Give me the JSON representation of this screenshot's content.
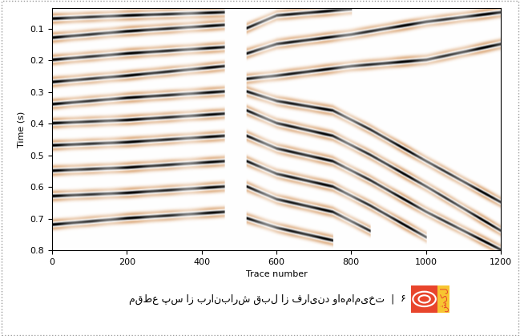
{
  "chart_data": {
    "type": "seismic_section",
    "xlabel": "Trace number",
    "ylabel": "Time (s)",
    "xlim": [
      0,
      1200
    ],
    "ylim": [
      0.8,
      0.035
    ],
    "xticks": [
      0,
      200,
      400,
      600,
      800,
      1000,
      1200
    ],
    "yticks": [
      0.1,
      0.2,
      0.3,
      0.4,
      0.5,
      0.6,
      0.7,
      0.8
    ],
    "horizons": [
      {
        "trace": [
          0,
          200,
          460
        ],
        "time": [
          0.07,
          0.06,
          0.05
        ]
      },
      {
        "trace": [
          0,
          200,
          460
        ],
        "time": [
          0.13,
          0.11,
          0.09
        ]
      },
      {
        "trace": [
          0,
          200,
          460
        ],
        "time": [
          0.2,
          0.18,
          0.16
        ]
      },
      {
        "trace": [
          0,
          200,
          460
        ],
        "time": [
          0.27,
          0.25,
          0.22
        ]
      },
      {
        "trace": [
          0,
          200,
          460
        ],
        "time": [
          0.34,
          0.32,
          0.3
        ]
      },
      {
        "trace": [
          0,
          200,
          460
        ],
        "time": [
          0.4,
          0.39,
          0.37
        ]
      },
      {
        "trace": [
          0,
          200,
          460
        ],
        "time": [
          0.47,
          0.46,
          0.44
        ]
      },
      {
        "trace": [
          0,
          200,
          460
        ],
        "time": [
          0.55,
          0.54,
          0.52
        ]
      },
      {
        "trace": [
          0,
          200,
          460
        ],
        "time": [
          0.63,
          0.62,
          0.6
        ]
      },
      {
        "trace": [
          0,
          200,
          460
        ],
        "time": [
          0.72,
          0.7,
          0.68
        ]
      },
      {
        "trace": [
          520,
          600,
          800
        ],
        "time": [
          0.1,
          0.06,
          0.04
        ]
      },
      {
        "trace": [
          520,
          600,
          800,
          1000,
          1200
        ],
        "time": [
          0.18,
          0.15,
          0.12,
          0.08,
          0.05
        ]
      },
      {
        "trace": [
          520,
          600,
          800,
          1000,
          1200
        ],
        "time": [
          0.26,
          0.25,
          0.22,
          0.2,
          0.15
        ]
      },
      {
        "trace": [
          520,
          600,
          750,
          850,
          1000,
          1200
        ],
        "time": [
          0.3,
          0.33,
          0.36,
          0.42,
          0.52,
          0.65
        ]
      },
      {
        "trace": [
          520,
          600,
          750,
          850,
          1000,
          1200
        ],
        "time": [
          0.36,
          0.4,
          0.44,
          0.5,
          0.6,
          0.74
        ]
      },
      {
        "trace": [
          520,
          600,
          750,
          850,
          1000,
          1200
        ],
        "time": [
          0.44,
          0.48,
          0.52,
          0.58,
          0.68,
          0.8
        ]
      },
      {
        "trace": [
          520,
          600,
          750,
          850,
          1000
        ],
        "time": [
          0.52,
          0.56,
          0.6,
          0.66,
          0.76
        ]
      },
      {
        "trace": [
          520,
          600,
          750,
          850
        ],
        "time": [
          0.6,
          0.64,
          0.68,
          0.74
        ]
      },
      {
        "trace": [
          520,
          600,
          750
        ],
        "time": [
          0.7,
          0.73,
          0.77
        ]
      }
    ]
  },
  "caption": {
    "badge": "شکل",
    "number": "۶",
    "separator": "|",
    "text": "مقطع پس از برانبارش قبل از فرایند واهمامیخت"
  }
}
